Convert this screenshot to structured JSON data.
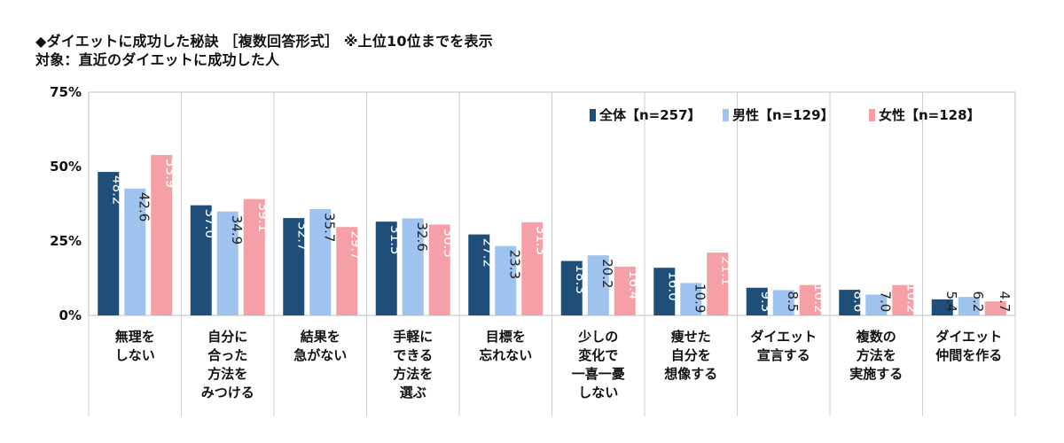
{
  "header": {
    "line1": "◆ダイエットに成功した秘訣 ［複数回答形式］ ※上位10位までを表示",
    "line2": "対象：直近のダイエットに成功した人"
  },
  "chart_data": {
    "type": "bar",
    "title": "◆ダイエットに成功した秘訣 ［複数回答形式］ ※上位10位までを表示",
    "subtitle": "対象：直近のダイエットに成功した人",
    "ylim": [
      0,
      75
    ],
    "yticks": [
      0,
      25,
      50,
      75
    ],
    "ytick_labels": [
      "0%",
      "25%",
      "50%",
      "75%"
    ],
    "grid": false,
    "legend_position": "top-right",
    "categories": [
      [
        "無理を",
        "しない"
      ],
      [
        "自分に",
        "合った",
        "方法を",
        "みつける"
      ],
      [
        "結果を",
        "急がない"
      ],
      [
        "手軽に",
        "できる",
        "方法を",
        "選ぶ"
      ],
      [
        "目標を",
        "忘れない"
      ],
      [
        "少しの",
        "変化で",
        "一喜一憂",
        "しない"
      ],
      [
        "痩せた",
        "自分を",
        "想像する"
      ],
      [
        "ダイエット",
        "宣言する"
      ],
      [
        "複数の",
        "方法を",
        "実施する"
      ],
      [
        "ダイエット",
        "仲間を作る"
      ]
    ],
    "series": [
      {
        "name": "全体【n=257】",
        "color": "#1f4e79",
        "values": [
          48.2,
          37.0,
          32.7,
          31.5,
          27.2,
          18.3,
          16.0,
          9.3,
          8.6,
          5.4
        ],
        "labels": [
          "48.2",
          "37.0",
          "32.7",
          "31.5",
          "27.2",
          "18.3",
          "16.0",
          "9.3",
          "8.6",
          "5.4"
        ]
      },
      {
        "name": "男性【n=129】",
        "color": "#9dc3ee",
        "values": [
          42.6,
          34.9,
          35.7,
          32.6,
          23.3,
          20.2,
          10.9,
          8.5,
          7.0,
          6.2
        ],
        "labels": [
          "42.6",
          "34.9",
          "35.7",
          "32.6",
          "23.3",
          "20.2",
          "10.9",
          "8.5",
          "7.0",
          "6.2"
        ]
      },
      {
        "name": "女性【n=128】",
        "color": "#f4a0a6",
        "values": [
          53.9,
          39.1,
          29.7,
          30.5,
          31.3,
          16.4,
          21.1,
          10.2,
          10.2,
          4.7
        ],
        "labels": [
          "53.9",
          "39.1",
          "29.7",
          "30.5",
          "31.3",
          "16.4",
          "21.1",
          "10.2",
          "10.2",
          "4.7"
        ]
      }
    ]
  }
}
